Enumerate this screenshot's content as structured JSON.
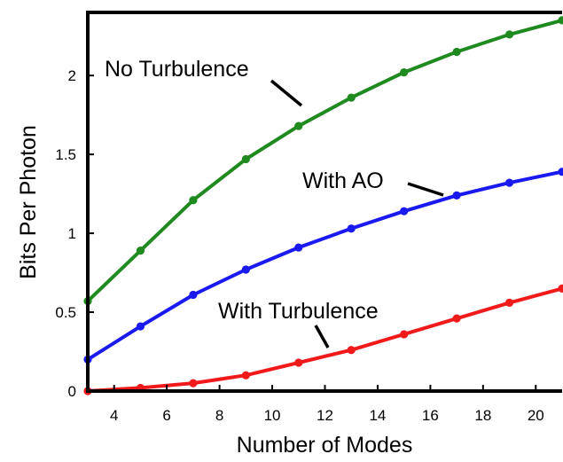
{
  "chart_data": {
    "type": "line",
    "title": "",
    "xlabel": "Number of Modes",
    "ylabel": "Bits Per Photon",
    "xlim": [
      3,
      21
    ],
    "ylim": [
      0,
      2.4
    ],
    "xticks": [
      4,
      6,
      8,
      10,
      12,
      14,
      16,
      18,
      20
    ],
    "xtick_labels": [
      "4",
      "6",
      "8",
      "10",
      "12",
      "14",
      "16",
      "18",
      "20"
    ],
    "yticks": [
      0,
      0.5,
      1,
      1.5,
      2
    ],
    "ytick_labels": [
      "0",
      "0.5",
      "1",
      "1.5",
      "2"
    ],
    "grid": false,
    "legend": "none",
    "x": [
      3,
      5,
      7,
      9,
      11,
      13,
      15,
      17,
      19,
      21
    ],
    "series": [
      {
        "annotation": "No Turbulence",
        "color": "#1f8a1f",
        "values": [
          0.57,
          0.89,
          1.21,
          1.47,
          1.68,
          1.86,
          2.02,
          2.15,
          2.26,
          2.35
        ]
      },
      {
        "annotation": "With AO",
        "color": "#1a1af0",
        "values": [
          0.2,
          0.41,
          0.61,
          0.77,
          0.91,
          1.03,
          1.14,
          1.24,
          1.32,
          1.39
        ]
      },
      {
        "annotation": "With Turbulence",
        "color": "#f01a1a",
        "values": [
          0.0,
          0.02,
          0.05,
          0.1,
          0.18,
          0.26,
          0.36,
          0.46,
          0.56,
          0.65
        ]
      }
    ]
  }
}
